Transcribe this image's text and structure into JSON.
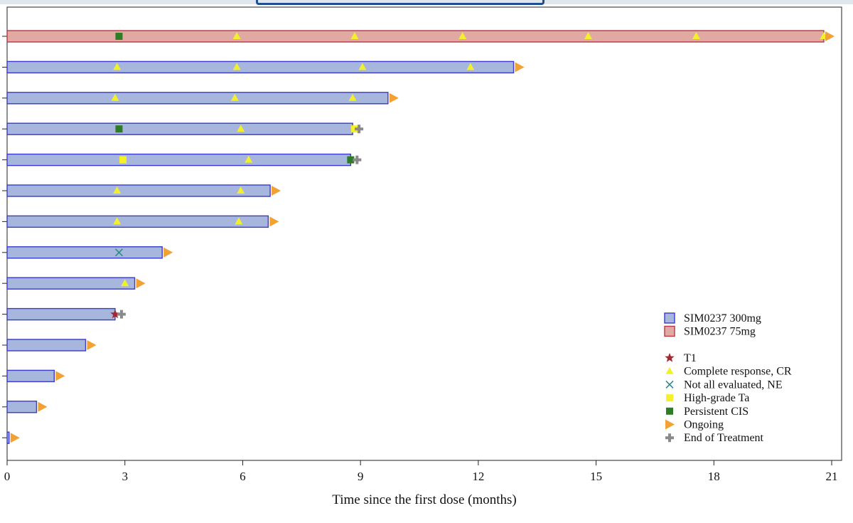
{
  "chart_data": {
    "type": "swimmer",
    "xlabel": "Time since the first dose (months)",
    "xlim": [
      0,
      21
    ],
    "xticks": [
      0,
      3,
      6,
      9,
      12,
      15,
      18,
      21
    ],
    "grid": false,
    "legend_position": "bottom-right",
    "groups": [
      {
        "id": "300",
        "name": "SIM0237 300mg",
        "fill": "#a7b6dd",
        "stroke": "#3a3acb"
      },
      {
        "id": "75",
        "name": "SIM0237 75mg",
        "fill": "#e2a9a2",
        "stroke": "#b23a48"
      }
    ],
    "marker_types": [
      {
        "id": "t1",
        "name": "T1",
        "shape": "star",
        "color": "#a4282f"
      },
      {
        "id": "cr",
        "name": "Complete response, CR",
        "shape": "triangle-up",
        "color": "#f2ef2c"
      },
      {
        "id": "ne",
        "name": "Not all evaluated, NE",
        "shape": "x",
        "color": "#2e8b8b"
      },
      {
        "id": "ta",
        "name": "High-grade Ta",
        "shape": "square",
        "color": "#f4f02a"
      },
      {
        "id": "cis",
        "name": "Persistent CIS",
        "shape": "square",
        "color": "#2e7d24"
      },
      {
        "id": "ongoing",
        "name": "Ongoing",
        "shape": "triangle-right",
        "color": "#f2a132"
      },
      {
        "id": "eot",
        "name": "End of Treatment",
        "shape": "plus",
        "color": "#8a8a8a"
      }
    ],
    "patients": [
      {
        "group": "75",
        "duration": 20.8,
        "markers": [
          [
            "cis",
            2.85
          ],
          [
            "cr",
            5.85
          ],
          [
            "cr",
            8.85
          ],
          [
            "cr",
            11.6
          ],
          [
            "cr",
            14.8
          ],
          [
            "cr",
            17.55
          ],
          [
            "cr",
            20.8
          ]
        ],
        "end": "ongoing"
      },
      {
        "group": "300",
        "duration": 12.9,
        "markers": [
          [
            "cr",
            2.8
          ],
          [
            "cr",
            5.85
          ],
          [
            "cr",
            9.05
          ],
          [
            "cr",
            11.8
          ]
        ],
        "end": "ongoing"
      },
      {
        "group": "300",
        "duration": 9.7,
        "markers": [
          [
            "cr",
            2.75
          ],
          [
            "cr",
            5.8
          ],
          [
            "cr",
            8.8
          ]
        ],
        "end": "ongoing"
      },
      {
        "group": "300",
        "duration": 8.8,
        "markers": [
          [
            "cis",
            2.85
          ],
          [
            "cr",
            5.95
          ],
          [
            "ta",
            8.85
          ]
        ],
        "end": "eot"
      },
      {
        "group": "300",
        "duration": 8.75,
        "markers": [
          [
            "ta",
            2.95
          ],
          [
            "cr",
            6.15
          ],
          [
            "cis",
            8.75
          ]
        ],
        "end": "eot"
      },
      {
        "group": "300",
        "duration": 6.7,
        "markers": [
          [
            "cr",
            2.8
          ],
          [
            "cr",
            5.95
          ]
        ],
        "end": "ongoing"
      },
      {
        "group": "300",
        "duration": 6.65,
        "markers": [
          [
            "cr",
            2.8
          ],
          [
            "cr",
            5.9
          ]
        ],
        "end": "ongoing"
      },
      {
        "group": "300",
        "duration": 3.95,
        "markers": [
          [
            "ne",
            2.85
          ]
        ],
        "end": "ongoing"
      },
      {
        "group": "300",
        "duration": 3.25,
        "markers": [
          [
            "cr",
            3.0
          ]
        ],
        "end": "ongoing"
      },
      {
        "group": "300",
        "duration": 2.75,
        "markers": [
          [
            "t1",
            2.75
          ]
        ],
        "end": "eot"
      },
      {
        "group": "300",
        "duration": 2.0,
        "markers": [],
        "end": "ongoing"
      },
      {
        "group": "300",
        "duration": 1.2,
        "markers": [],
        "end": "ongoing"
      },
      {
        "group": "300",
        "duration": 0.75,
        "markers": [],
        "end": "ongoing"
      },
      {
        "group": "300",
        "duration": 0.05,
        "markers": [],
        "end": "ongoing"
      }
    ]
  }
}
